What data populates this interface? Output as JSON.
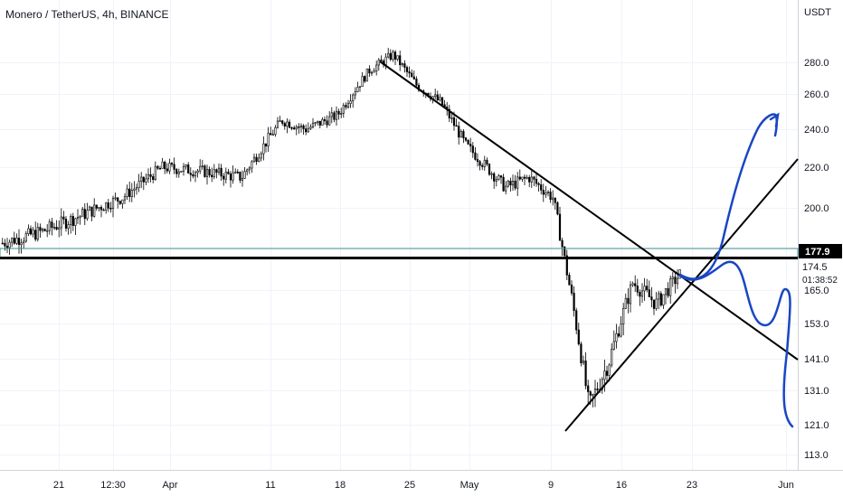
{
  "title": "Monero / TetherUS, 4h, BINANCE",
  "colors": {
    "candle": "#000000",
    "grid": "#f0f3fa",
    "axis_text": "#131722",
    "price_line": "#d1d4dc",
    "drawing_black": "#000000",
    "drawing_blue": "#1846c4",
    "channel": "#3a8c91",
    "price_tag_bg": "#000000",
    "price_tag_text": "#ffffff"
  },
  "chart_data": {
    "type": "candlestick",
    "currency_label": "USDT",
    "y_ticks": [
      "280.0",
      "260.0",
      "240.0",
      "220.0",
      "200.0",
      "165.0",
      "153.0",
      "141.0",
      "131.0",
      "121.0",
      "113.0"
    ],
    "y_tick_values": [
      280,
      260,
      240,
      220,
      200,
      165,
      153,
      141,
      131,
      121,
      113
    ],
    "x_ticks": [
      "21",
      "12:30",
      "Apr",
      "11",
      "18",
      "25",
      "May",
      "9",
      "16",
      "23",
      "Jun"
    ],
    "current_price": "177.9",
    "last_price_label": "174.5",
    "countdown": "01:38:52",
    "trend": [
      {
        "x": 0,
        "y": 185
      },
      {
        "x": 0.05,
        "y": 190
      },
      {
        "x": 0.1,
        "y": 197
      },
      {
        "x": 0.15,
        "y": 205
      },
      {
        "x": 0.2,
        "y": 220
      },
      {
        "x": 0.25,
        "y": 218
      },
      {
        "x": 0.3,
        "y": 215
      },
      {
        "x": 0.35,
        "y": 245
      },
      {
        "x": 0.38,
        "y": 240
      },
      {
        "x": 0.42,
        "y": 248
      },
      {
        "x": 0.46,
        "y": 275
      },
      {
        "x": 0.49,
        "y": 285
      },
      {
        "x": 0.52,
        "y": 265
      },
      {
        "x": 0.55,
        "y": 255
      },
      {
        "x": 0.58,
        "y": 232
      },
      {
        "x": 0.63,
        "y": 210
      },
      {
        "x": 0.66,
        "y": 215
      },
      {
        "x": 0.69,
        "y": 205
      },
      {
        "x": 0.71,
        "y": 168
      },
      {
        "x": 0.735,
        "y": 126
      },
      {
        "x": 0.76,
        "y": 140
      },
      {
        "x": 0.79,
        "y": 168
      },
      {
        "x": 0.82,
        "y": 160
      },
      {
        "x": 0.85,
        "y": 172
      }
    ]
  }
}
